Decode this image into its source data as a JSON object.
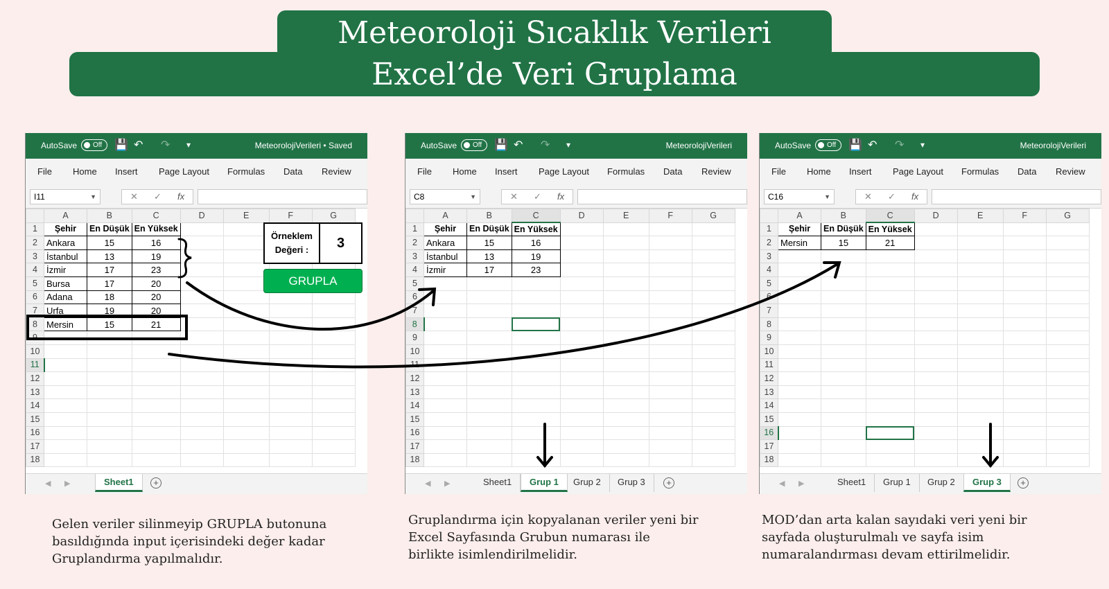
{
  "banner": {
    "line1": "Meteoroloji Sıcaklık Verileri",
    "line2": "Excel’de Veri Gruplama"
  },
  "common": {
    "autosave_label": "AutoSave",
    "autosave_state": "Off",
    "ribbon": [
      "File",
      "Home",
      "Insert",
      "Page Layout",
      "Formulas",
      "Data",
      "Review"
    ],
    "columns": [
      "A",
      "B",
      "C",
      "D",
      "E",
      "F",
      "G"
    ],
    "row_numbers": [
      "1",
      "2",
      "3",
      "4",
      "5",
      "6",
      "7",
      "8",
      "9",
      "10",
      "11",
      "12",
      "13",
      "14",
      "15",
      "16",
      "17",
      "18"
    ],
    "fx_symbol": "fx",
    "accent_color": "#217346",
    "button_color": "#00b050"
  },
  "windows": [
    {
      "filename": "MeteorolojiVerileri • Saved",
      "namebox": "I11",
      "header_row": [
        "Şehir",
        "En Düşük",
        "En Yüksek"
      ],
      "rows": [
        [
          "Ankara",
          "15",
          "16"
        ],
        [
          "İstanbul",
          "13",
          "19"
        ],
        [
          "İzmir",
          "17",
          "23"
        ],
        [
          "Bursa",
          "17",
          "20"
        ],
        [
          "Adana",
          "18",
          "20"
        ],
        [
          "Urfa",
          "19",
          "20"
        ],
        [
          "Mersin",
          "15",
          "21"
        ]
      ],
      "sample_label": "Örneklem Değeri :",
      "sample_value": "3",
      "button_label": "GRUPLA",
      "tabs": [
        "Sheet1"
      ],
      "active_tab": "Sheet1"
    },
    {
      "filename": "MeteorolojiVerileri",
      "namebox": "C8",
      "header_row": [
        "Şehir",
        "En Düşük",
        "En Yüksek"
      ],
      "rows": [
        [
          "Ankara",
          "15",
          "16"
        ],
        [
          "İstanbul",
          "13",
          "19"
        ],
        [
          "İzmir",
          "17",
          "23"
        ]
      ],
      "tabs": [
        "Sheet1",
        "Grup 1",
        "Grup 2",
        "Grup 3"
      ],
      "active_tab": "Grup 1"
    },
    {
      "filename": "MeteorolojiVerileri",
      "namebox": "C16",
      "header_row": [
        "Şehir",
        "En Düşük",
        "En Yüksek"
      ],
      "rows": [
        [
          "Mersin",
          "15",
          "21"
        ]
      ],
      "tabs": [
        "Sheet1",
        "Grup 1",
        "Grup 2",
        "Grup 3"
      ],
      "active_tab": "Grup 3"
    }
  ],
  "captions": [
    "Gelen veriler silinmeyip GRUPLA butonuna basıldığında input içerisindeki değer kadar Gruplandırma yapılmalıdır.",
    "Gruplandırma için kopyalanan veriler yeni bir Excel Sayfasında Grubun numarası ile birlikte isimlendirilmelidir.",
    "MOD’dan arta kalan sayıdaki veri yeni bir sayfada oluşturulmalı ve sayfa isim numaralandırması devam ettirilmelidir."
  ]
}
